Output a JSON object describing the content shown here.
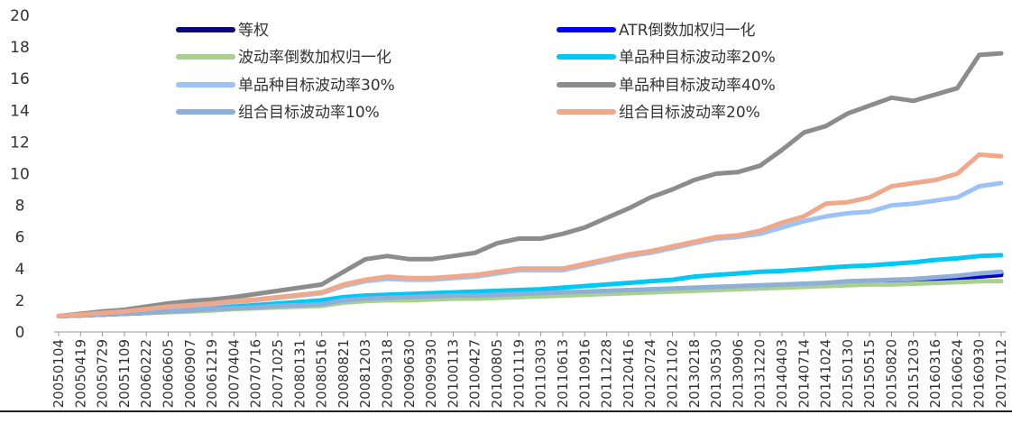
{
  "chart_data": {
    "type": "line",
    "title": "",
    "xlabel": "",
    "ylabel": "",
    "ylim": [
      0,
      20
    ],
    "yticks": [
      "0",
      "2",
      "4",
      "6",
      "8",
      "10",
      "12",
      "14",
      "16",
      "18",
      "20"
    ],
    "x_tick_labels": [
      "20050104",
      "20050419",
      "20050729",
      "20051109",
      "20060222",
      "20060605",
      "20060907",
      "20061219",
      "20070404",
      "20070716",
      "20071025",
      "20080131",
      "20080516",
      "20080821",
      "20081203",
      "20090318",
      "20090630",
      "20090930",
      "20100113",
      "20100427",
      "20100805",
      "20101119",
      "20110303",
      "20110613",
      "20110916",
      "20111228",
      "20120416",
      "20120724",
      "20121102",
      "20130218",
      "20130530",
      "20130906",
      "20131220",
      "20140403",
      "20140714",
      "20141024",
      "20150130",
      "20150515",
      "20150820",
      "20151203",
      "20160316",
      "20160624",
      "20160930",
      "20170112"
    ],
    "legend_position": "top",
    "series": [
      {
        "name": "等权",
        "color": "#0a0a78",
        "values": [
          1.0,
          1.05,
          1.1,
          1.15,
          1.2,
          1.3,
          1.35,
          1.4,
          1.5,
          1.55,
          1.6,
          1.65,
          1.7,
          1.9,
          2.0,
          2.05,
          2.1,
          2.15,
          2.2,
          2.2,
          2.25,
          2.3,
          2.35,
          2.4,
          2.45,
          2.5,
          2.55,
          2.6,
          2.65,
          2.7,
          2.75,
          2.8,
          2.85,
          2.9,
          2.95,
          3.0,
          3.05,
          3.1,
          3.15,
          3.2,
          3.3,
          3.4,
          3.5,
          3.6
        ]
      },
      {
        "name": "ATR倒数加权归一化",
        "color": "#0000f0",
        "values": [
          1.0,
          1.05,
          1.1,
          1.15,
          1.2,
          1.3,
          1.35,
          1.45,
          1.5,
          1.55,
          1.65,
          1.7,
          1.75,
          1.95,
          2.05,
          2.1,
          2.15,
          2.2,
          2.25,
          2.25,
          2.3,
          2.35,
          2.4,
          2.45,
          2.5,
          2.55,
          2.6,
          2.65,
          2.7,
          2.75,
          2.8,
          2.85,
          2.9,
          2.95,
          3.0,
          3.05,
          3.1,
          3.15,
          3.2,
          3.25,
          3.35,
          3.45,
          3.6,
          3.7
        ]
      },
      {
        "name": "波动率倒数加权归一化",
        "color": "#a9d18e",
        "values": [
          1.0,
          1.05,
          1.1,
          1.15,
          1.2,
          1.25,
          1.3,
          1.35,
          1.45,
          1.5,
          1.55,
          1.6,
          1.65,
          1.85,
          1.95,
          2.0,
          2.0,
          2.05,
          2.1,
          2.1,
          2.15,
          2.2,
          2.25,
          2.3,
          2.35,
          2.4,
          2.45,
          2.5,
          2.55,
          2.6,
          2.65,
          2.7,
          2.75,
          2.8,
          2.85,
          2.9,
          2.95,
          3.0,
          3.0,
          3.05,
          3.1,
          3.15,
          3.2,
          3.2
        ]
      },
      {
        "name": "单品种目标波动率20%",
        "color": "#00c8f5",
        "values": [
          1.0,
          1.1,
          1.15,
          1.2,
          1.3,
          1.4,
          1.45,
          1.5,
          1.6,
          1.7,
          1.8,
          1.9,
          2.0,
          2.2,
          2.3,
          2.35,
          2.4,
          2.45,
          2.5,
          2.55,
          2.6,
          2.65,
          2.7,
          2.8,
          2.9,
          3.0,
          3.1,
          3.2,
          3.3,
          3.5,
          3.6,
          3.7,
          3.8,
          3.85,
          3.95,
          4.05,
          4.15,
          4.2,
          4.3,
          4.4,
          4.55,
          4.65,
          4.8,
          4.85
        ]
      },
      {
        "name": "单品种目标波动率30%",
        "color": "#9dc3f6",
        "values": [
          1.0,
          1.1,
          1.2,
          1.3,
          1.4,
          1.55,
          1.65,
          1.75,
          1.9,
          2.0,
          2.15,
          2.3,
          2.45,
          2.9,
          3.2,
          3.35,
          3.3,
          3.3,
          3.4,
          3.5,
          3.7,
          3.9,
          3.9,
          3.9,
          4.2,
          4.5,
          4.8,
          5.0,
          5.3,
          5.6,
          5.9,
          6.0,
          6.2,
          6.6,
          7.0,
          7.3,
          7.5,
          7.6,
          8.0,
          8.1,
          8.3,
          8.5,
          9.2,
          9.4
        ]
      },
      {
        "name": "单品种目标波动率40%",
        "color": "#8c8c8c",
        "values": [
          1.0,
          1.15,
          1.3,
          1.4,
          1.6,
          1.8,
          1.95,
          2.05,
          2.2,
          2.4,
          2.6,
          2.8,
          3.0,
          3.8,
          4.6,
          4.8,
          4.6,
          4.6,
          4.8,
          5.0,
          5.6,
          5.9,
          5.9,
          6.2,
          6.6,
          7.2,
          7.8,
          8.5,
          9.0,
          9.6,
          10.0,
          10.1,
          10.5,
          11.5,
          12.6,
          13.0,
          13.8,
          14.3,
          14.8,
          14.6,
          15.0,
          15.4,
          17.5,
          17.6
        ]
      },
      {
        "name": "组合目标波动率10%",
        "color": "#90afd6",
        "values": [
          1.0,
          1.05,
          1.1,
          1.15,
          1.2,
          1.3,
          1.35,
          1.45,
          1.5,
          1.55,
          1.65,
          1.7,
          1.75,
          2.0,
          2.1,
          2.15,
          2.2,
          2.25,
          2.3,
          2.3,
          2.35,
          2.4,
          2.45,
          2.5,
          2.55,
          2.6,
          2.65,
          2.7,
          2.75,
          2.8,
          2.85,
          2.9,
          2.95,
          3.0,
          3.05,
          3.1,
          3.2,
          3.25,
          3.3,
          3.35,
          3.45,
          3.55,
          3.7,
          3.8
        ]
      },
      {
        "name": "组合目标波动率20%",
        "color": "#f0a88a",
        "values": [
          1.0,
          1.1,
          1.2,
          1.3,
          1.45,
          1.6,
          1.7,
          1.8,
          1.95,
          2.05,
          2.2,
          2.35,
          2.5,
          3.0,
          3.3,
          3.5,
          3.4,
          3.4,
          3.5,
          3.6,
          3.8,
          4.0,
          4.0,
          4.0,
          4.3,
          4.6,
          4.9,
          5.1,
          5.4,
          5.7,
          6.0,
          6.1,
          6.4,
          6.9,
          7.3,
          8.1,
          8.2,
          8.5,
          9.2,
          9.4,
          9.6,
          10.0,
          11.2,
          11.1
        ]
      }
    ]
  }
}
